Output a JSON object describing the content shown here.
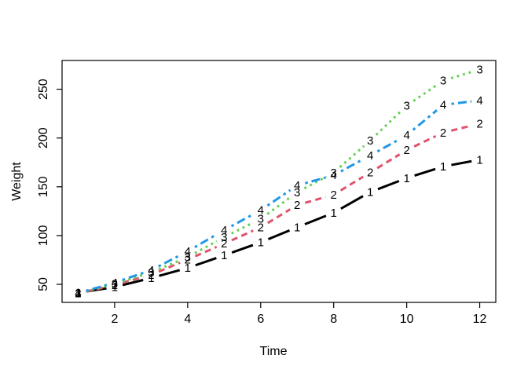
{
  "chart_data": {
    "type": "line",
    "title": "",
    "xlabel": "Time",
    "ylabel": "Weight",
    "x": [
      1,
      2,
      3,
      4,
      5,
      6,
      7,
      8,
      9,
      10,
      11,
      12
    ],
    "x_ticks": [
      2,
      4,
      6,
      8,
      10,
      12
    ],
    "y_ticks": [
      50,
      100,
      150,
      200,
      250
    ],
    "xlim": [
      0.56,
      12.44
    ],
    "ylim": [
      31.5,
      279.5
    ],
    "grid": false,
    "series": [
      {
        "name": "1",
        "label": "1",
        "color": "#000000",
        "linetype": "solid",
        "values": [
          41.4,
          47.2,
          56.5,
          66.8,
          79.7,
          93.1,
          108.5,
          123.4,
          144.6,
          158.9,
          170.8,
          177.8
        ]
      },
      {
        "name": "2",
        "label": "2",
        "color": "#DF536B",
        "linetype": "dashed",
        "values": [
          40.7,
          49.4,
          59.8,
          75.4,
          91.7,
          108.5,
          131.3,
          141.9,
          164.7,
          187.7,
          205.6,
          214.7
        ]
      },
      {
        "name": "3",
        "label": "3",
        "color": "#61D04F",
        "linetype": "dotted",
        "values": [
          40.8,
          50.4,
          62.2,
          77.9,
          98.4,
          117.1,
          144.4,
          164.5,
          197.4,
          233.1,
          258.9,
          270.3
        ]
      },
      {
        "name": "4",
        "label": "4",
        "color": "#2297E6",
        "linetype": "dashdot",
        "values": [
          41.0,
          51.8,
          64.5,
          83.9,
          105.6,
          126.0,
          151.4,
          161.8,
          182.1,
          202.9,
          233.9,
          238.6
        ]
      }
    ]
  }
}
